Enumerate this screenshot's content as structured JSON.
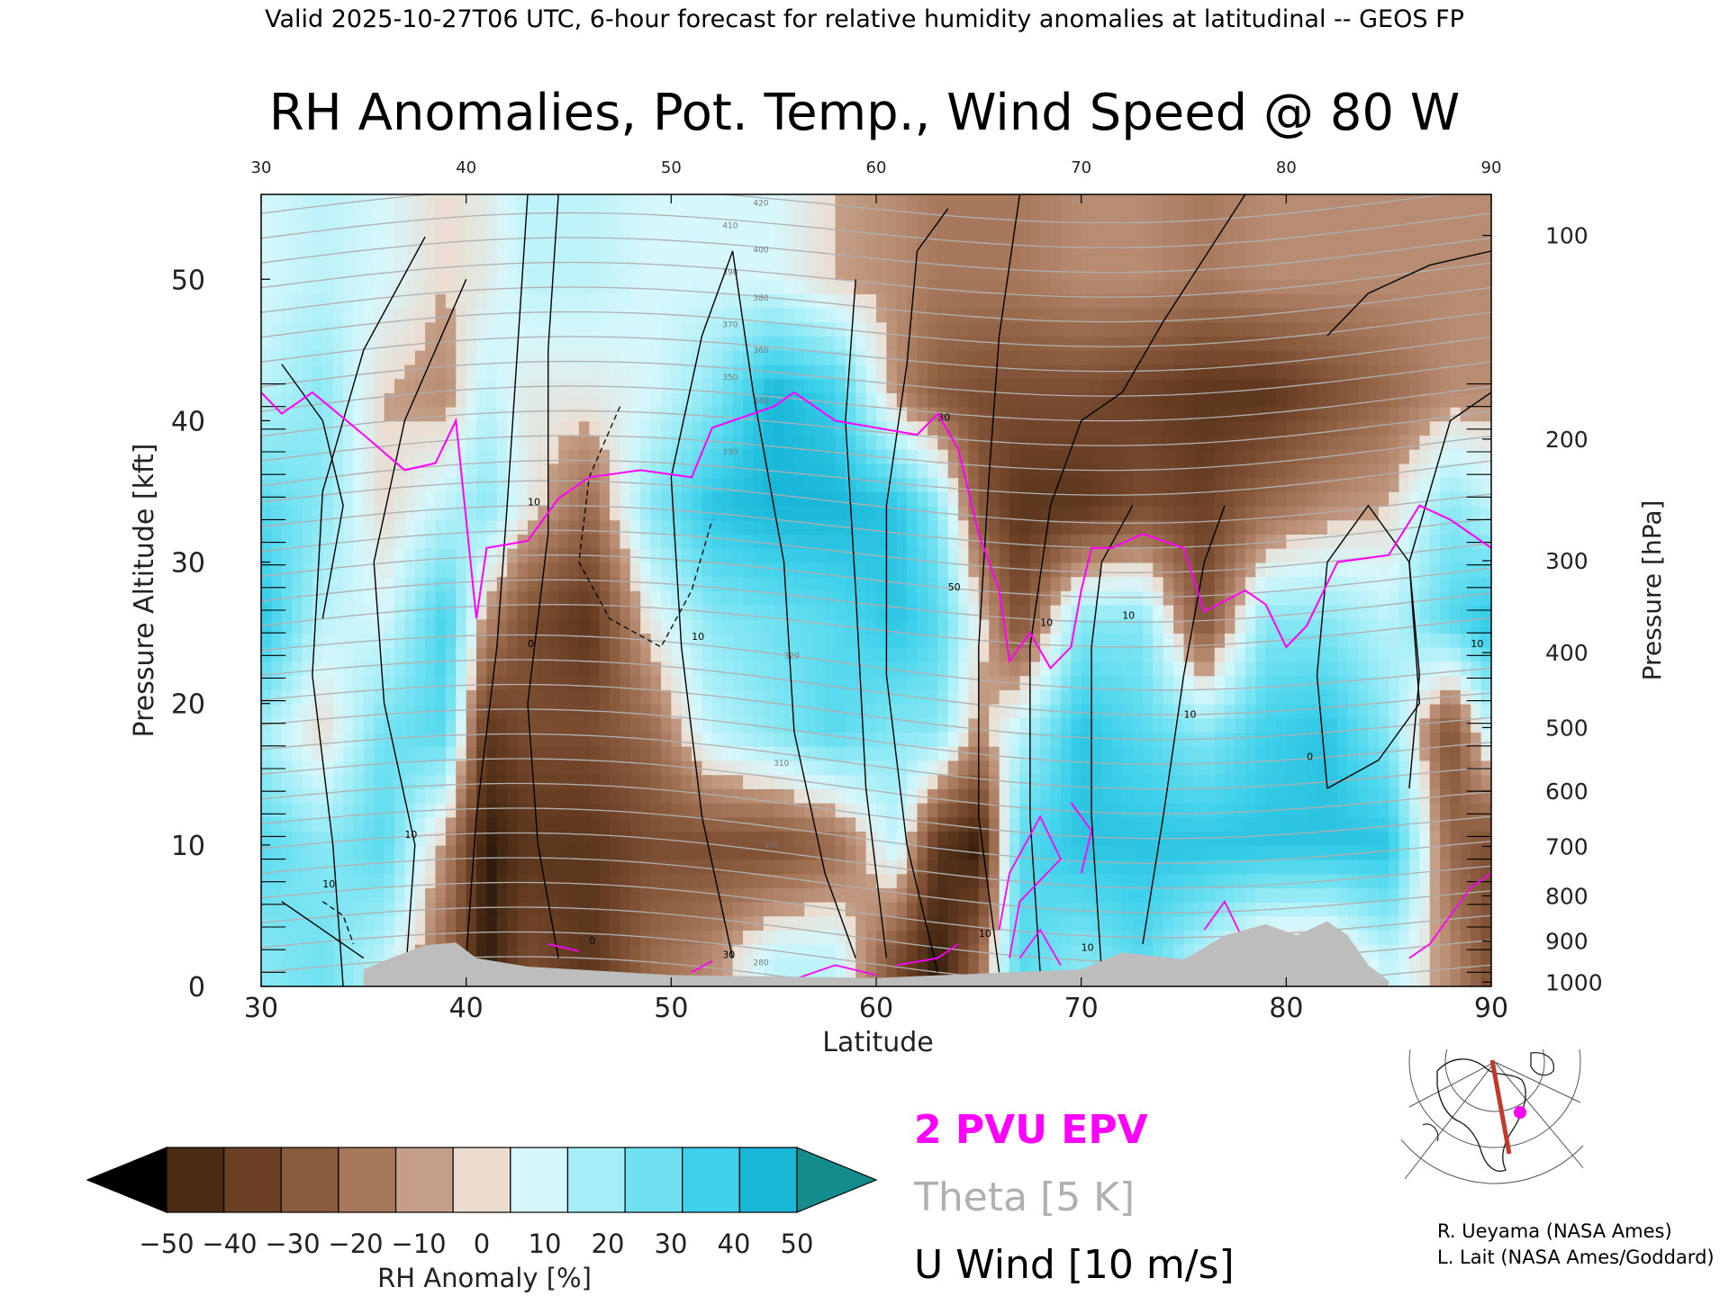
{
  "chart_data": {
    "type": "heatmap",
    "header": "Valid 2025-10-27T06 UTC, 6-hour forecast for relative humidity anomalies at latitudinal -- GEOS FP",
    "title": "RH Anomalies, Pot. Temp., Wind Speed @ 80 W",
    "xlabel": "Latitude",
    "ylabel_left": "Pressure Altitude [kft]",
    "ylabel_right": "Pressure [hPa]",
    "xlim": [
      30,
      90
    ],
    "ylim": [
      0,
      56
    ],
    "x_ticks": [
      "30",
      "40",
      "50",
      "60",
      "70",
      "80",
      "90"
    ],
    "y_ticks_left": [
      "0",
      "10",
      "20",
      "30",
      "40",
      "50"
    ],
    "y_ticks_right": [
      {
        "label": "100",
        "kft": 53.1
      },
      {
        "label": "200",
        "kft": 38.7
      },
      {
        "label": "300",
        "kft": 30.1
      },
      {
        "label": "400",
        "kft": 23.6
      },
      {
        "label": "500",
        "kft": 18.3
      },
      {
        "label": "600",
        "kft": 13.8
      },
      {
        "label": "700",
        "kft": 9.9
      },
      {
        "label": "800",
        "kft": 6.4
      },
      {
        "label": "900",
        "kft": 3.2
      },
      {
        "label": "1000",
        "kft": 0.3
      }
    ],
    "rh_anomaly_field": {
      "latitudes": [
        30,
        33,
        36,
        39,
        41,
        43,
        46,
        49,
        52,
        55,
        58,
        61,
        63,
        65,
        67,
        70,
        73,
        76,
        79,
        82,
        85,
        88,
        90
      ],
      "altitudes_kft": [
        2,
        10,
        18,
        26,
        34,
        42,
        50
      ],
      "values": [
        [
          20,
          30,
          15,
          40,
          30,
          10,
          5
        ],
        [
          25,
          20,
          -5,
          10,
          20,
          20,
          10
        ],
        [
          10,
          30,
          25,
          5,
          -5,
          -5,
          5
        ],
        [
          -20,
          -10,
          30,
          35,
          10,
          -10,
          -5
        ],
        [
          -50,
          -50,
          -40,
          -10,
          20,
          10,
          0
        ],
        [
          -30,
          -40,
          -30,
          -30,
          0,
          0,
          10
        ],
        [
          -40,
          -40,
          -30,
          -40,
          -20,
          0,
          10
        ],
        [
          -20,
          -30,
          -20,
          0,
          20,
          5,
          5
        ],
        [
          -10,
          -30,
          10,
          20,
          40,
          20,
          5
        ],
        [
          10,
          -30,
          20,
          25,
          45,
          45,
          5
        ],
        [
          10,
          -20,
          30,
          30,
          45,
          35,
          -5
        ],
        [
          -30,
          10,
          20,
          40,
          40,
          -10,
          -10
        ],
        [
          -50,
          -40,
          20,
          30,
          20,
          -25,
          -15
        ],
        [
          -20,
          -50,
          -10,
          0,
          -25,
          -30,
          -15
        ],
        [
          30,
          30,
          10,
          -30,
          -40,
          -30,
          -15
        ],
        [
          20,
          40,
          40,
          20,
          -40,
          -30,
          -10
        ],
        [
          30,
          40,
          30,
          20,
          -30,
          -35,
          -10
        ],
        [
          10,
          40,
          20,
          -30,
          -35,
          -40,
          -15
        ],
        [
          -10,
          40,
          35,
          20,
          -20,
          -40,
          -10
        ],
        [
          -10,
          40,
          40,
          20,
          -10,
          -30,
          -10
        ],
        [
          10,
          40,
          20,
          10,
          -5,
          -20,
          -10
        ],
        [
          -10,
          -20,
          -30,
          30,
          20,
          -10,
          -10
        ],
        [
          -30,
          -30,
          10,
          40,
          10,
          -10,
          -10
        ]
      ]
    },
    "colorbar": {
      "label": "RH Anomaly [%]",
      "ticks": [
        "−50",
        "−40",
        "−30",
        "−20",
        "−10",
        "0",
        "10",
        "20",
        "30",
        "40",
        "50"
      ],
      "bins": [
        -50,
        -40,
        -30,
        -20,
        -10,
        0,
        10,
        20,
        30,
        40,
        50
      ],
      "colors": [
        "#4a2b14",
        "#6b4025",
        "#8a5a3d",
        "#a8785c",
        "#c59f87",
        "#ecdcd0",
        "#d6f7fb",
        "#a4eef7",
        "#6fe1f1",
        "#3fd1eb",
        "#18b6d7"
      ],
      "under_color": "#000000",
      "over_color": "#148c8c"
    },
    "wind_contours": {
      "label_values": [
        "10",
        "10",
        "10",
        "30",
        "50",
        "10",
        "10",
        "10",
        "30",
        "10",
        "10",
        "10",
        "0",
        "0",
        "0",
        "10"
      ]
    },
    "theta_contours": {
      "levels_K": [
        "280",
        "300",
        "310",
        "320",
        "330",
        "340",
        "350",
        "360",
        "370",
        "380",
        "390",
        "400",
        "410",
        "420"
      ]
    },
    "terrain": [
      {
        "lat": 35,
        "top_kft": 1.2
      },
      {
        "lat": 36.5,
        "top_kft": 2.1
      },
      {
        "lat": 38,
        "top_kft": 2.9
      },
      {
        "lat": 39.5,
        "top_kft": 3.1
      },
      {
        "lat": 40.5,
        "top_kft": 2.0
      },
      {
        "lat": 43,
        "top_kft": 1.4
      },
      {
        "lat": 50,
        "top_kft": 0.8
      },
      {
        "lat": 60,
        "top_kft": 0.6
      },
      {
        "lat": 70,
        "top_kft": 1.2
      },
      {
        "lat": 72,
        "top_kft": 2.4
      },
      {
        "lat": 75,
        "top_kft": 1.9
      },
      {
        "lat": 77,
        "top_kft": 3.6
      },
      {
        "lat": 79,
        "top_kft": 4.4
      },
      {
        "lat": 80.5,
        "top_kft": 3.6
      },
      {
        "lat": 82,
        "top_kft": 4.6
      },
      {
        "lat": 83,
        "top_kft": 3.6
      },
      {
        "lat": 84,
        "top_kft": 1.5
      },
      {
        "lat": 85,
        "top_kft": 0.4
      }
    ],
    "legend": {
      "epv": "2 PVU EPV",
      "theta": "Theta [5 K]",
      "wind": "U Wind [10 m/s]",
      "epv_color": "#ff00ff",
      "theta_color": "#b0b0b0",
      "wind_color": "#000000"
    },
    "credits": [
      "R. Ueyama (NASA Ames)",
      "L. Lait (NASA Ames/Goddard)"
    ]
  }
}
